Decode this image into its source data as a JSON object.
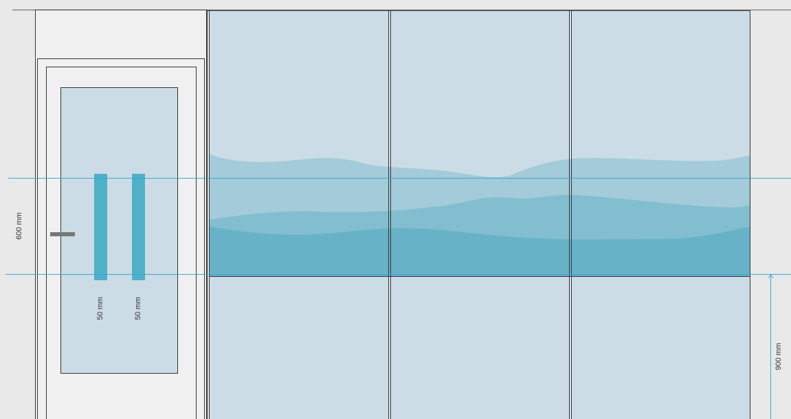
{
  "dimensions": {
    "height_upper_label": "600 mm",
    "height_lower_label": "900 mm",
    "stripe_1_width_label": "50 mm",
    "stripe_2_width_label": "50 mm"
  },
  "colors": {
    "background": "#e9e9e9",
    "frame": "#f0f0f0",
    "glass": "#ccdce6",
    "wave_light": "#a3cbd9",
    "wave_mid": "#82bed0",
    "wave_dark": "#68b2c8",
    "stripe": "#4fb0c6",
    "guide_line": "#3aa7d8",
    "handle": "#777777",
    "outline": "#333333"
  }
}
